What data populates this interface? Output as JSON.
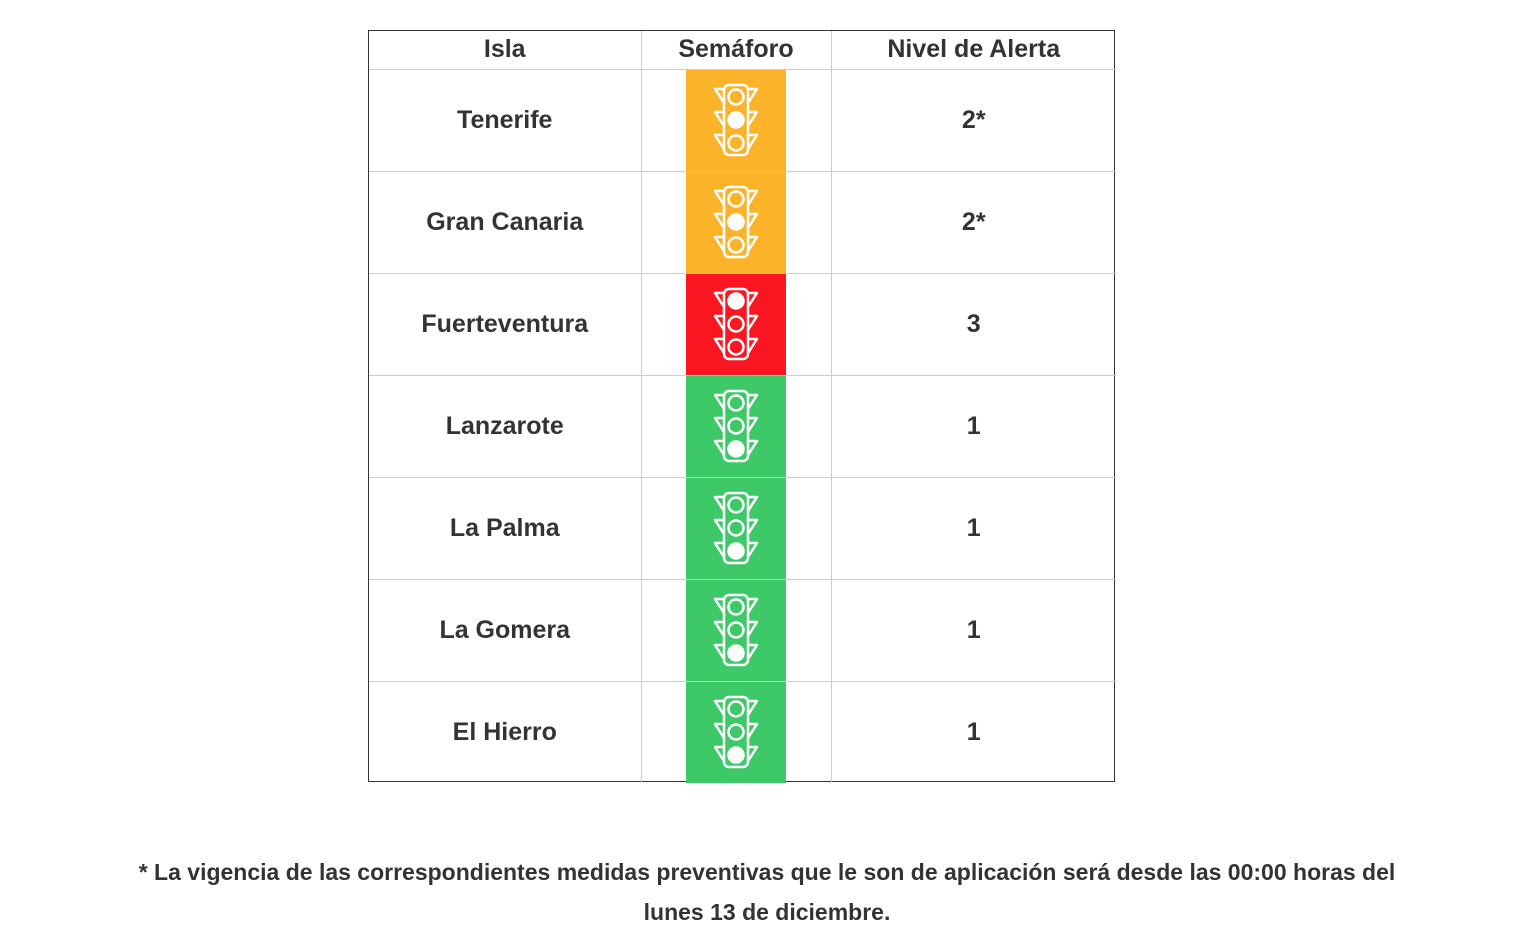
{
  "table": {
    "headers": [
      "Isla",
      "Semáforo",
      "Nivel de Alerta"
    ],
    "rows": [
      {
        "isla": "Tenerife",
        "semaforo": {
          "state": "amarillo",
          "color": "#fbb42a",
          "lit": "middle",
          "icon": "traffic-light-icon"
        },
        "nivel": "2*"
      },
      {
        "isla": "Gran Canaria",
        "semaforo": {
          "state": "amarillo",
          "color": "#fbb42a",
          "lit": "middle",
          "icon": "traffic-light-icon"
        },
        "nivel": "2*"
      },
      {
        "isla": "Fuerteventura",
        "semaforo": {
          "state": "rojo",
          "color": "#fc1621",
          "lit": "top",
          "icon": "traffic-light-icon"
        },
        "nivel": "3"
      },
      {
        "isla": "Lanzarote",
        "semaforo": {
          "state": "verde",
          "color": "#3ec968",
          "lit": "bottom",
          "icon": "traffic-light-icon"
        },
        "nivel": "1"
      },
      {
        "isla": "La Palma",
        "semaforo": {
          "state": "verde",
          "color": "#3ec968",
          "lit": "bottom",
          "icon": "traffic-light-icon"
        },
        "nivel": "1"
      },
      {
        "isla": "La Gomera",
        "semaforo": {
          "state": "verde",
          "color": "#3ec968",
          "lit": "bottom",
          "icon": "traffic-light-icon"
        },
        "nivel": "1"
      },
      {
        "isla": "El Hierro",
        "semaforo": {
          "state": "verde",
          "color": "#3ec968",
          "lit": "bottom",
          "icon": "traffic-light-icon"
        },
        "nivel": "1"
      }
    ]
  },
  "footnote": {
    "line1": "* La vigencia de las correspondientes medidas preventivas que le son de aplicación será  desde las 00:00 horas del",
    "line2": "lunes 13 de diciembre."
  }
}
